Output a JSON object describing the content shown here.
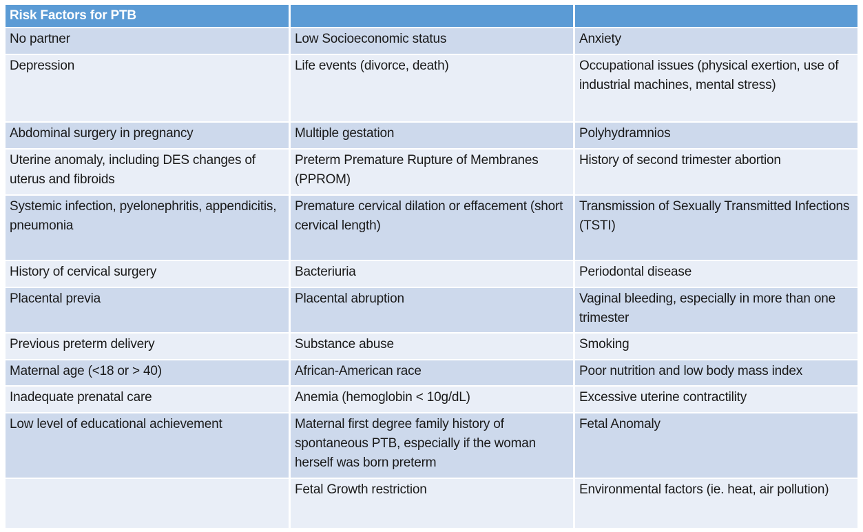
{
  "table": {
    "title": "Risk Factors for PTB",
    "header": [
      "Risk Factors for PTB",
      "",
      ""
    ],
    "rows": [
      [
        "No partner",
        "Low Socioeconomic status",
        "Anxiety"
      ],
      [
        "Depression",
        "Life events (divorce, death)",
        "Occupational issues (physical exertion, use of industrial machines, mental stress)"
      ],
      [
        "Abdominal surgery in pregnancy",
        "Multiple gestation",
        "Polyhydramnios"
      ],
      [
        "Uterine anomaly, including DES changes of uterus and fibroids",
        "Preterm Premature Rupture of Membranes (PPROM)",
        "History of second trimester abortion"
      ],
      [
        "Systemic infection, pyelonephritis, appendicitis, pneumonia",
        "Premature cervical dilation or effacement (short cervical length)",
        "Transmission of Sexually Transmitted Infections (TSTI)"
      ],
      [
        "History of cervical surgery",
        "Bacteriuria",
        "Periodontal disease"
      ],
      [
        "Placental previa",
        "Placental abruption",
        "Vaginal bleeding, especially in more than one trimester"
      ],
      [
        "Previous preterm delivery",
        "Substance abuse",
        "Smoking"
      ],
      [
        "Maternal age (<18 or > 40)",
        "African-American race",
        "Poor nutrition and low body mass index"
      ],
      [
        "Inadequate prenatal care",
        "Anemia (hemoglobin < 10g/dL)",
        "Excessive uterine contractility"
      ],
      [
        "Low level of educational achievement",
        "Maternal first degree family history of spontaneous PTB, especially if the woman herself was born preterm",
        "Fetal Anomaly"
      ],
      [
        "",
        "Fetal Growth restriction",
        "Environmental factors (ie. heat, air pollution)"
      ]
    ],
    "colors": {
      "header_bg": "#5B9BD5",
      "band_dark": "#CDD9EC",
      "band_light": "#E9EEF7",
      "header_text": "#FFFFFF",
      "body_text": "#1A1A1A"
    }
  }
}
